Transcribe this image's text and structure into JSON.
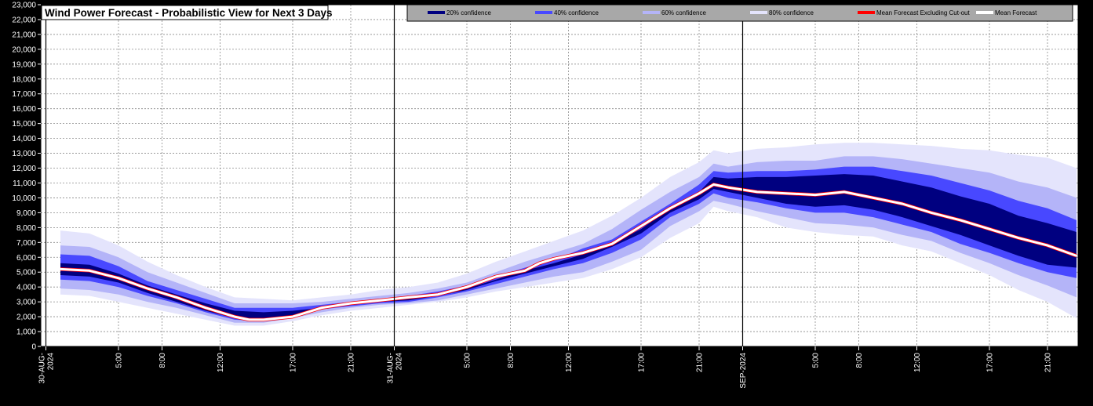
{
  "chart_data": {
    "type": "area",
    "title": "Wind Power Forecast - Probabilistic View for Next 3 Days",
    "xlabel": "",
    "ylabel": "",
    "ylim": [
      0,
      23000
    ],
    "yticks": [
      0,
      1000,
      2000,
      3000,
      4000,
      5000,
      6000,
      7000,
      8000,
      9000,
      10000,
      11000,
      12000,
      13000,
      14000,
      15000,
      16000,
      17000,
      18000,
      19000,
      20000,
      21000,
      22000,
      23000
    ],
    "ytick_labels": [
      "0",
      "1,000",
      "2,000",
      "3,000",
      "4,000",
      "5,000",
      "6,000",
      "7,000",
      "8,000",
      "9,000",
      "10,000",
      "11,000",
      "12,000",
      "13,000",
      "14,000",
      "15,000",
      "16,000",
      "17,000",
      "18,000",
      "19,000",
      "20,000",
      "21,000",
      "22,000",
      "23,000"
    ],
    "x_hours_range": [
      0,
      71
    ],
    "xticks": [
      {
        "hour": 0,
        "label": "30-AUG-2024",
        "major": true
      },
      {
        "hour": 5,
        "label": "5:00",
        "major": false
      },
      {
        "hour": 8,
        "label": "8:00",
        "major": false
      },
      {
        "hour": 12,
        "label": "12:00",
        "major": false
      },
      {
        "hour": 17,
        "label": "17:00",
        "major": false
      },
      {
        "hour": 21,
        "label": "21:00",
        "major": false
      },
      {
        "hour": 24,
        "label": "31-AUG-2024",
        "major": true
      },
      {
        "hour": 29,
        "label": "5:00",
        "major": false
      },
      {
        "hour": 32,
        "label": "8:00",
        "major": false
      },
      {
        "hour": 36,
        "label": "12:00",
        "major": false
      },
      {
        "hour": 41,
        "label": "17:00",
        "major": false
      },
      {
        "hour": 45,
        "label": "21:00",
        "major": false
      },
      {
        "hour": 48,
        "label": "SEP-2024",
        "major": true
      },
      {
        "hour": 53,
        "label": "5:00",
        "major": false
      },
      {
        "hour": 56,
        "label": "8:00",
        "major": false
      },
      {
        "hour": 60,
        "label": "12:00",
        "major": false
      },
      {
        "hour": 65,
        "label": "17:00",
        "major": false
      },
      {
        "hour": 69,
        "label": "21:00",
        "major": false
      }
    ],
    "grid": true,
    "legend_position": "top",
    "legend": [
      {
        "label": "20% confidence",
        "color": "#000080"
      },
      {
        "label": "40% confidence",
        "color": "#4848ff"
      },
      {
        "label": "60% confidence",
        "color": "#b4b4f8"
      },
      {
        "label": "80% confidence",
        "color": "#e4e4fc"
      },
      {
        "label": "Mean Forecast Excluding Cut-out",
        "color": "#ff0000"
      },
      {
        "label": "Mean Forecast",
        "color": "#ffffff"
      }
    ],
    "series": [
      {
        "name": "Mean Forecast",
        "hours": [
          1,
          3,
          5,
          7,
          9,
          11,
          13,
          14,
          15,
          17,
          19,
          21,
          23,
          25,
          27,
          29,
          31,
          33,
          34,
          35,
          37,
          39,
          41,
          43,
          44,
          45,
          46,
          47,
          49,
          51,
          53,
          55,
          57,
          59,
          61,
          63,
          65,
          67,
          69,
          71
        ],
        "values": [
          5200,
          5100,
          4600,
          3900,
          3300,
          2600,
          2000,
          1800,
          1800,
          2000,
          2600,
          2900,
          3100,
          3300,
          3500,
          4000,
          4700,
          5100,
          5600,
          5900,
          6300,
          6900,
          8100,
          9300,
          9800,
          10300,
          10900,
          10700,
          10400,
          10300,
          10200,
          10400,
          10000,
          9600,
          9000,
          8500,
          7900,
          7300,
          6800,
          6100
        ]
      }
    ],
    "bands_hours": [
      1,
      3,
      5,
      7,
      9,
      11,
      13,
      15,
      17,
      19,
      21,
      23,
      25,
      27,
      29,
      31,
      33,
      35,
      37,
      39,
      41,
      43,
      45,
      46,
      47,
      49,
      51,
      53,
      55,
      57,
      59,
      61,
      63,
      65,
      67,
      69,
      71
    ],
    "bands": {
      "80": {
        "low": [
          3500,
          3400,
          3000,
          2600,
          2200,
          1800,
          1400,
          1400,
          1700,
          2100,
          2400,
          2600,
          2800,
          3000,
          3300,
          3700,
          4000,
          4300,
          4600,
          5200,
          6000,
          7300,
          8300,
          9400,
          9100,
          8700,
          8000,
          7700,
          7500,
          7400,
          6800,
          6400,
          5600,
          4800,
          3800,
          3000,
          1900
        ],
        "high": [
          7800,
          7600,
          6800,
          5700,
          4800,
          4000,
          3300,
          3200,
          3100,
          3300,
          3500,
          3800,
          4000,
          4300,
          4900,
          5700,
          6400,
          7100,
          7800,
          8800,
          10000,
          11400,
          12400,
          13200,
          13000,
          13300,
          13400,
          13600,
          13700,
          13700,
          13600,
          13500,
          13300,
          13200,
          12900,
          12700,
          12000
        ]
      },
      "60": {
        "low": [
          3900,
          3800,
          3500,
          3000,
          2600,
          2100,
          1600,
          1600,
          1900,
          2300,
          2600,
          2800,
          2900,
          3100,
          3500,
          3900,
          4300,
          4700,
          5000,
          5700,
          6500,
          8100,
          9100,
          9800,
          9600,
          9100,
          8700,
          8300,
          8200,
          8000,
          7500,
          7100,
          6300,
          5600,
          4800,
          4100,
          3300
        ],
        "high": [
          6800,
          6700,
          6000,
          5000,
          4300,
          3600,
          2900,
          2900,
          2900,
          3000,
          3200,
          3400,
          3600,
          3900,
          4300,
          5000,
          5700,
          6300,
          6900,
          7900,
          9200,
          10400,
          11400,
          12300,
          12100,
          12400,
          12500,
          12500,
          12800,
          12800,
          12600,
          12300,
          12000,
          11700,
          11100,
          10700,
          10000
        ]
      },
      "40": {
        "low": [
          4500,
          4400,
          4000,
          3400,
          2900,
          2300,
          1800,
          1700,
          2000,
          2500,
          2700,
          2900,
          3000,
          3300,
          3700,
          4200,
          4700,
          5200,
          5600,
          6300,
          7200,
          8700,
          9600,
          10300,
          10000,
          9700,
          9300,
          9000,
          9000,
          8700,
          8200,
          7700,
          6900,
          6300,
          5600,
          5000,
          4600
        ],
        "high": [
          6200,
          6100,
          5400,
          4400,
          3800,
          3200,
          2600,
          2600,
          2600,
          2800,
          3000,
          3200,
          3400,
          3700,
          4100,
          4700,
          5300,
          5800,
          6600,
          7200,
          8400,
          9600,
          10900,
          11800,
          11700,
          11800,
          11800,
          11900,
          12100,
          12100,
          11800,
          11500,
          11000,
          10500,
          9800,
          9300,
          8500
        ]
      },
      "20": {
        "low": [
          4800,
          4700,
          4300,
          3600,
          3000,
          2400,
          1900,
          1800,
          2000,
          2500,
          2800,
          3000,
          3100,
          3400,
          3800,
          4400,
          4900,
          5400,
          5900,
          6700,
          7600,
          9000,
          9900,
          10600,
          10400,
          10000,
          9600,
          9400,
          9500,
          9200,
          8700,
          8100,
          7500,
          6800,
          6100,
          5500,
          5300
        ],
        "high": [
          5600,
          5500,
          4900,
          4100,
          3500,
          2900,
          2400,
          2300,
          2400,
          2600,
          2900,
          3100,
          3300,
          3500,
          3900,
          4500,
          5100,
          5600,
          6200,
          6900,
          7900,
          9300,
          10400,
          11400,
          11300,
          11400,
          11400,
          11500,
          11600,
          11500,
          11100,
          10700,
          10100,
          9600,
          8800,
          8300,
          7700
        ]
      }
    }
  }
}
